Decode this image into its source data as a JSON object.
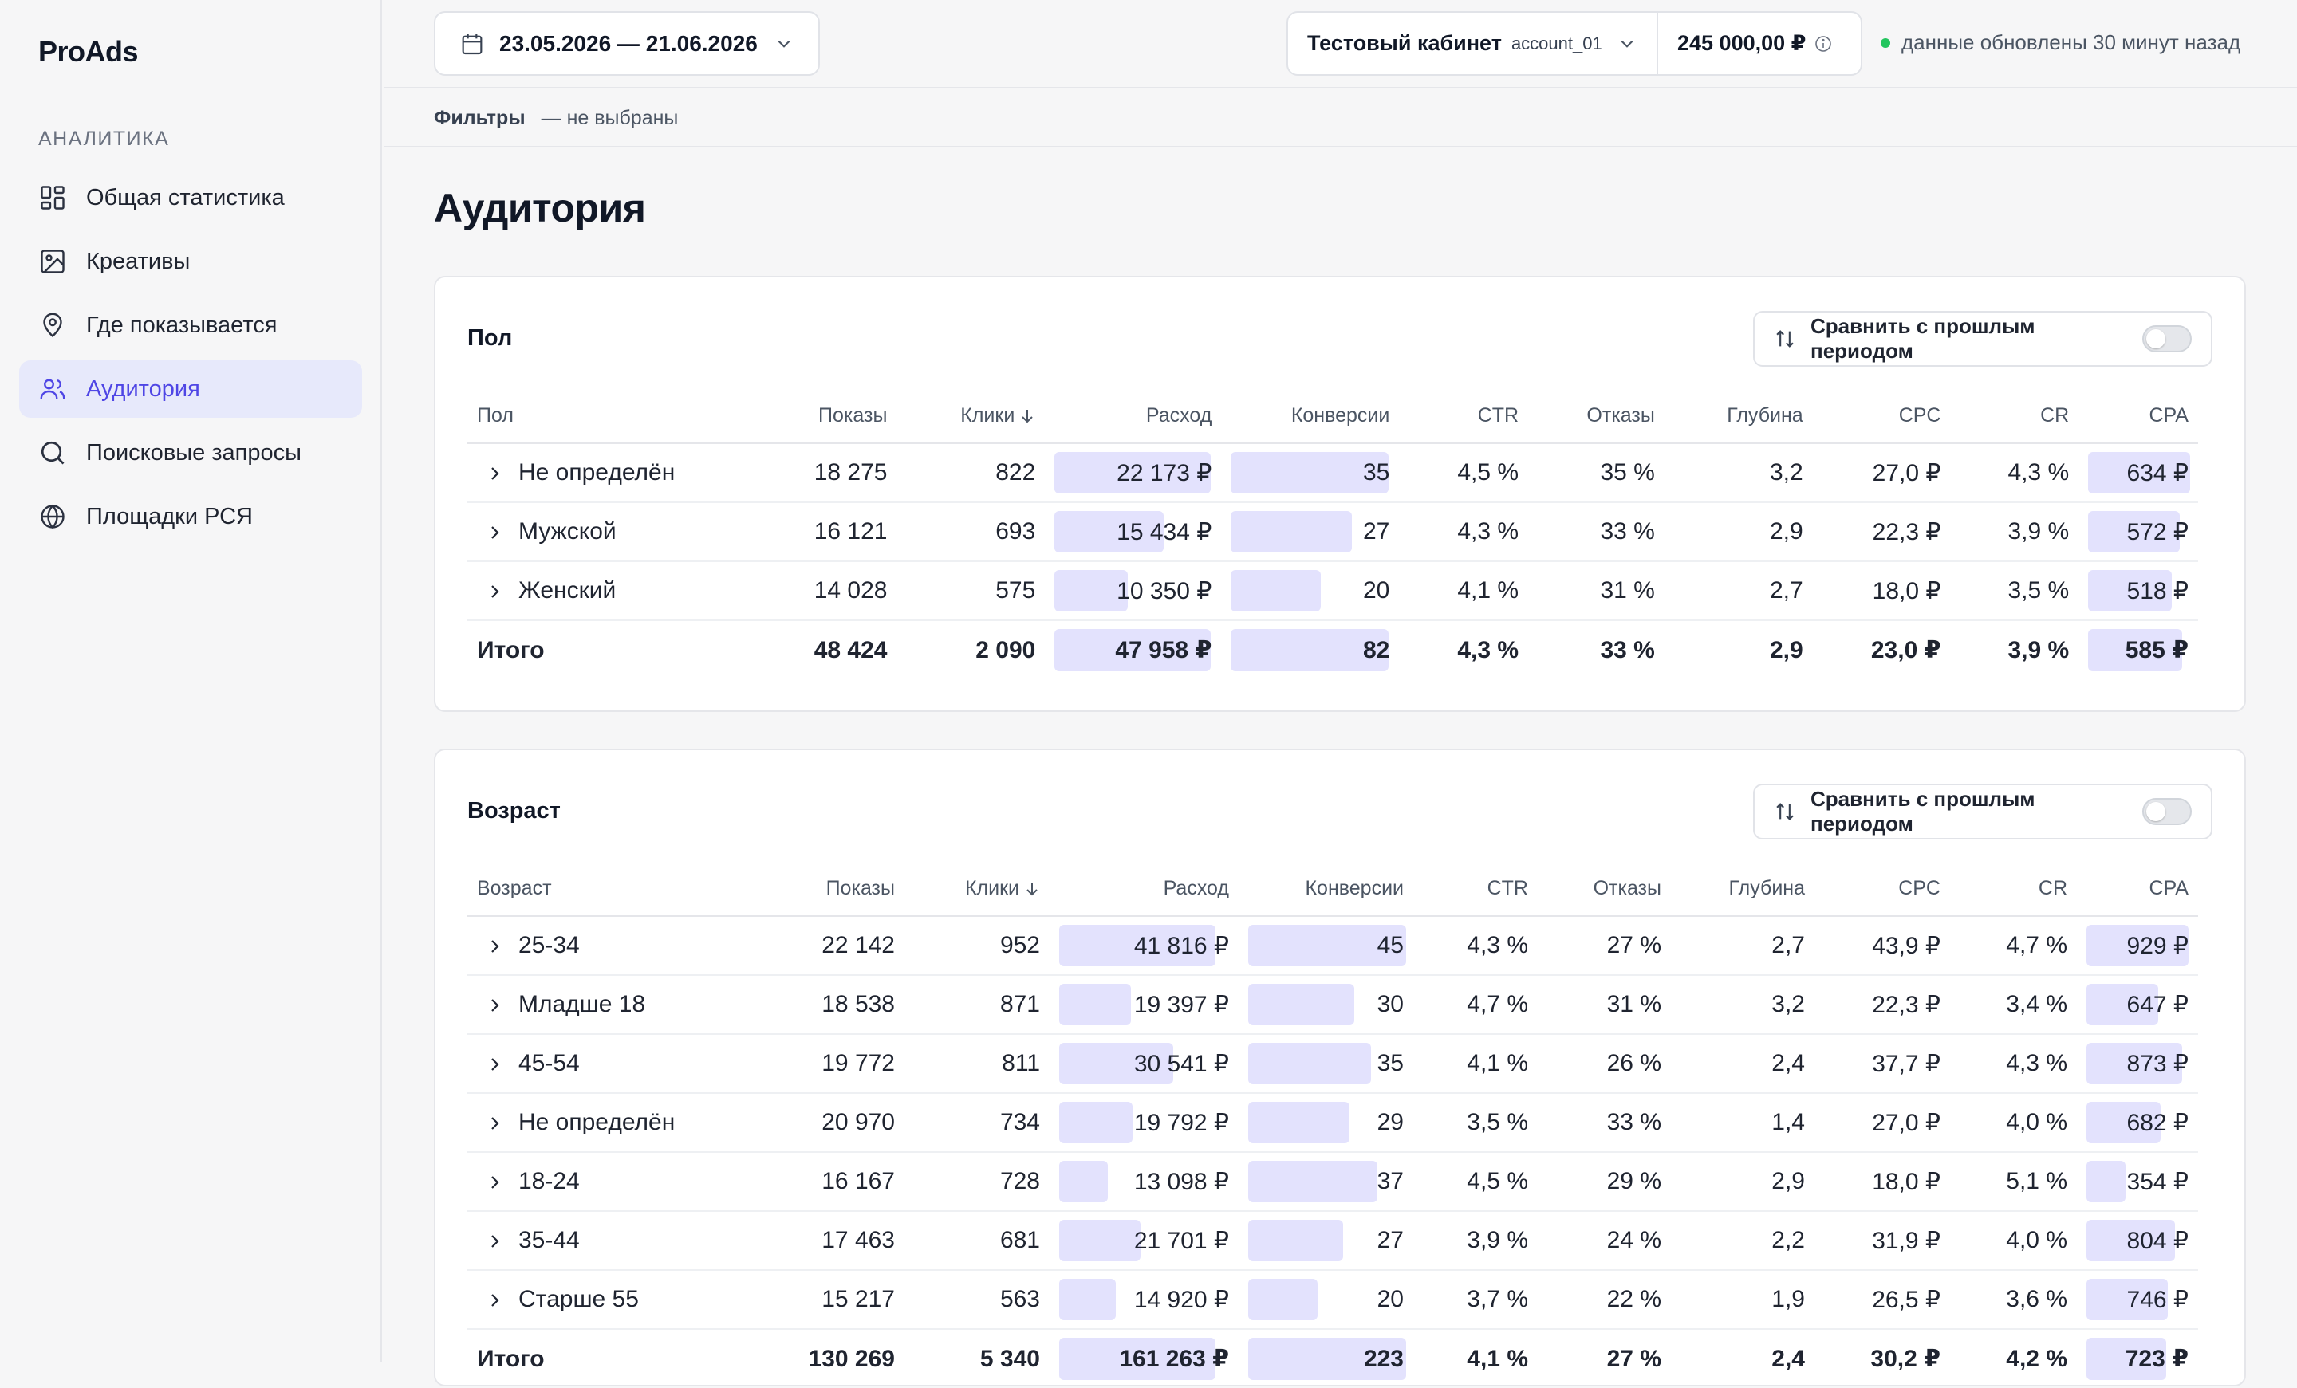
{
  "app": {
    "logo": "ProAds"
  },
  "sidebar": {
    "section": "АНАЛИТИКА",
    "items": [
      {
        "label": "Общая статистика",
        "icon": "dashboard-icon"
      },
      {
        "label": "Креативы",
        "icon": "image-icon"
      },
      {
        "label": "Где показывается",
        "icon": "location-pin-icon"
      },
      {
        "label": "Аудитория",
        "icon": "users-icon",
        "active": true
      },
      {
        "label": "Поисковые запросы",
        "icon": "search-icon"
      },
      {
        "label": "Площадки РСЯ",
        "icon": "globe-icon"
      }
    ]
  },
  "topbar": {
    "date_range": "23.05.2026 — 21.06.2026",
    "account_name": "Тестовый кабинет",
    "account_id": "account_01",
    "balance": "245 000,00 ₽",
    "status": "данные обновлены 30 минут назад"
  },
  "filters": {
    "label": "Фильтры",
    "value": "— не выбраны"
  },
  "page_title": "Аудитория",
  "colors": {
    "accent": "#4f46e5",
    "bar_fill": "#e3e2fd",
    "status_dot": "#22c55e"
  },
  "gender_card": {
    "title": "Пол",
    "compare_label": "Сравнить с прошлым периодом",
    "compare_enabled": false,
    "columns": [
      "Пол",
      "Показы",
      "Клики",
      "Расход",
      "Конверсии",
      "CTR",
      "Отказы",
      "Глубина",
      "CPC",
      "CR",
      "CPA"
    ],
    "sorted_column": "Клики",
    "rows": [
      {
        "label": "Не определён",
        "shows": "18 275",
        "clicks": "822",
        "spend": "22 173 ₽",
        "conv": "35",
        "ctr": "4,5 %",
        "bounce": "35 %",
        "depth": "3,2",
        "cpc": "27,0 ₽",
        "cr": "4,3 %",
        "cpa": "634 ₽",
        "spend_level": 1.0,
        "conv_level": 1.0,
        "cpa_level": 1.0
      },
      {
        "label": "Мужской",
        "shows": "16 121",
        "clicks": "693",
        "spend": "15 434 ₽",
        "conv": "27",
        "ctr": "4,3 %",
        "bounce": "33 %",
        "depth": "2,9",
        "cpc": "22,3 ₽",
        "cr": "3,9 %",
        "cpa": "572 ₽",
        "spend_level": 0.7,
        "conv_level": 0.77,
        "cpa_level": 0.9
      },
      {
        "label": "Женский",
        "shows": "14 028",
        "clicks": "575",
        "spend": "10 350 ₽",
        "conv": "20",
        "ctr": "4,1 %",
        "bounce": "31 %",
        "depth": "2,7",
        "cpc": "18,0 ₽",
        "cr": "3,5 %",
        "cpa": "518 ₽",
        "spend_level": 0.47,
        "conv_level": 0.57,
        "cpa_level": 0.82
      }
    ],
    "total": {
      "label": "Итого",
      "shows": "48 424",
      "clicks": "2 090",
      "spend": "47 958 ₽",
      "conv": "82",
      "ctr": "4,3 %",
      "bounce": "33 %",
      "depth": "2,9",
      "cpc": "23,0 ₽",
      "cr": "3,9 %",
      "cpa": "585 ₽",
      "spend_level": 1.0,
      "conv_level": 1.0,
      "cpa_level": 0.92
    }
  },
  "age_card": {
    "title": "Возраст",
    "compare_label": "Сравнить с прошлым периодом",
    "compare_enabled": false,
    "columns": [
      "Возраст",
      "Показы",
      "Клики",
      "Расход",
      "Конверсии",
      "CTR",
      "Отказы",
      "Глубина",
      "CPC",
      "CR",
      "CPA"
    ],
    "sorted_column": "Клики",
    "rows": [
      {
        "label": "25-34",
        "shows": "22 142",
        "clicks": "952",
        "spend": "41 816 ₽",
        "conv": "45",
        "ctr": "4,3 %",
        "bounce": "27 %",
        "depth": "2,7",
        "cpc": "43,9 ₽",
        "cr": "4,7 %",
        "cpa": "929 ₽",
        "spend_level": 1.0,
        "conv_level": 1.0,
        "cpa_level": 1.0
      },
      {
        "label": "Младше 18",
        "shows": "18 538",
        "clicks": "871",
        "spend": "19 397 ₽",
        "conv": "30",
        "ctr": "4,7 %",
        "bounce": "31 %",
        "depth": "3,2",
        "cpc": "22,3 ₽",
        "cr": "3,4 %",
        "cpa": "647 ₽",
        "spend_level": 0.46,
        "conv_level": 0.67,
        "cpa_level": 0.7
      },
      {
        "label": "45-54",
        "shows": "19 772",
        "clicks": "811",
        "spend": "30 541 ₽",
        "conv": "35",
        "ctr": "4,1 %",
        "bounce": "26 %",
        "depth": "2,4",
        "cpc": "37,7 ₽",
        "cr": "4,3 %",
        "cpa": "873 ₽",
        "spend_level": 0.73,
        "conv_level": 0.78,
        "cpa_level": 0.94
      },
      {
        "label": "Не определён",
        "shows": "20 970",
        "clicks": "734",
        "spend": "19 792 ₽",
        "conv": "29",
        "ctr": "3,5 %",
        "bounce": "33 %",
        "depth": "1,4",
        "cpc": "27,0 ₽",
        "cr": "4,0 %",
        "cpa": "682 ₽",
        "spend_level": 0.47,
        "conv_level": 0.64,
        "cpa_level": 0.73
      },
      {
        "label": "18-24",
        "shows": "16 167",
        "clicks": "728",
        "spend": "13 098 ₽",
        "conv": "37",
        "ctr": "4,5 %",
        "bounce": "29 %",
        "depth": "2,9",
        "cpc": "18,0 ₽",
        "cr": "5,1 %",
        "cpa": "354 ₽",
        "spend_level": 0.31,
        "conv_level": 0.82,
        "cpa_level": 0.38
      },
      {
        "label": "35-44",
        "shows": "17 463",
        "clicks": "681",
        "spend": "21 701 ₽",
        "conv": "27",
        "ctr": "3,9 %",
        "bounce": "24 %",
        "depth": "2,2",
        "cpc": "31,9 ₽",
        "cr": "4,0 %",
        "cpa": "804 ₽",
        "spend_level": 0.52,
        "conv_level": 0.6,
        "cpa_level": 0.87
      },
      {
        "label": "Старше 55",
        "shows": "15 217",
        "clicks": "563",
        "spend": "14 920 ₽",
        "conv": "20",
        "ctr": "3,7 %",
        "bounce": "22 %",
        "depth": "1,9",
        "cpc": "26,5 ₽",
        "cr": "3,6 %",
        "cpa": "746 ₽",
        "spend_level": 0.36,
        "conv_level": 0.44,
        "cpa_level": 0.8
      }
    ],
    "total": {
      "label": "Итого",
      "shows": "130 269",
      "clicks": "5 340",
      "spend": "161 263 ₽",
      "conv": "223",
      "ctr": "4,1 %",
      "bounce": "27 %",
      "depth": "2,4",
      "cpc": "30,2 ₽",
      "cr": "4,2 %",
      "cpa": "723 ₽",
      "spend_level": 1.0,
      "conv_level": 1.0,
      "cpa_level": 0.78
    }
  }
}
